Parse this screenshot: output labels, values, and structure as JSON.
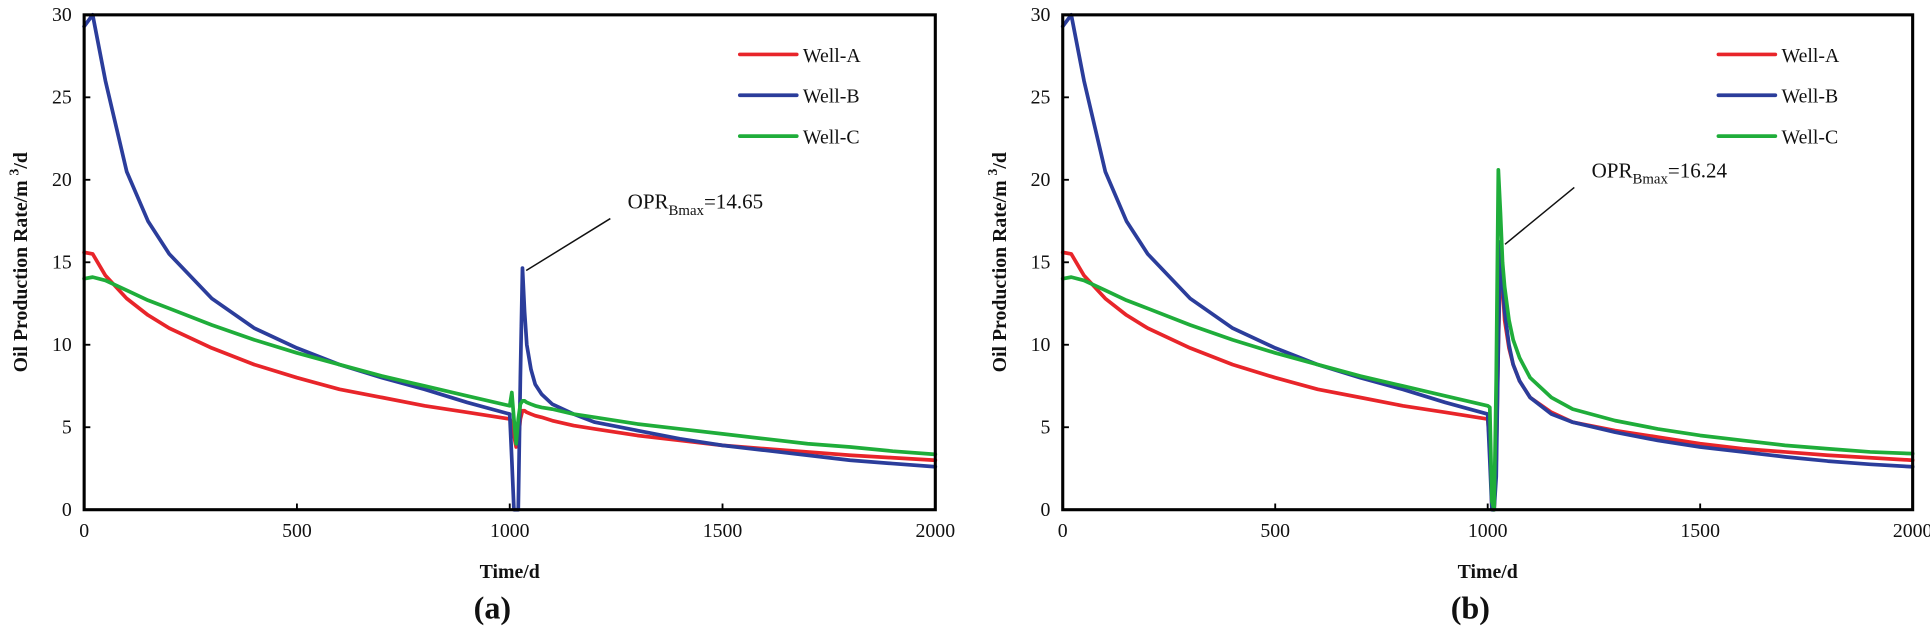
{
  "colors": {
    "Well-A": "#e8252a",
    "Well-B": "#2b3d9b",
    "Well-C": "#1fad3a"
  },
  "chart_data": [
    {
      "type": "line",
      "panel_label": "(a)",
      "xlabel": "Time/d",
      "ylabel": {
        "text": "Oil Production Rate/m ",
        "sup": "3",
        "tail": "/d"
      },
      "xlim": [
        0,
        2000
      ],
      "ylim": [
        0,
        30
      ],
      "xticks": [
        "0",
        "500",
        "1000",
        "1500",
        "2000"
      ],
      "yticks": [
        "0",
        "5",
        "10",
        "15",
        "20",
        "25",
        "30"
      ],
      "grid": false,
      "legend": "top-right",
      "annotation": {
        "prefix": "OPR",
        "sub": "Bmax",
        "suffix": "=14.65",
        "x": 1030,
        "y": 14.65
      },
      "x": [
        0,
        20,
        50,
        100,
        150,
        200,
        300,
        400,
        500,
        600,
        700,
        800,
        900,
        1000,
        1005,
        1010,
        1015,
        1020,
        1025,
        1030,
        1035,
        1040,
        1050,
        1060,
        1075,
        1100,
        1150,
        1200,
        1300,
        1400,
        1500,
        1600,
        1700,
        1800,
        1900,
        2000
      ],
      "series": [
        {
          "name": "Well-A",
          "values": [
            15.6,
            15.5,
            14.2,
            12.8,
            11.8,
            11,
            9.8,
            8.8,
            8,
            7.3,
            6.8,
            6.3,
            5.9,
            5.5,
            5.3,
            4.5,
            3.8,
            4.2,
            5.5,
            6.0,
            6.0,
            5.9,
            5.8,
            5.7,
            5.6,
            5.4,
            5.1,
            4.9,
            4.5,
            4.2,
            3.9,
            3.7,
            3.5,
            3.3,
            3.15,
            3.0
          ]
        },
        {
          "name": "Well-B",
          "values": [
            29.3,
            30,
            26,
            20.5,
            17.5,
            15.5,
            12.8,
            11,
            9.8,
            8.8,
            8,
            7.3,
            6.5,
            5.8,
            3,
            0,
            0,
            0,
            8,
            14.65,
            12,
            10,
            8.5,
            7.6,
            7,
            6.4,
            5.8,
            5.3,
            4.8,
            4.3,
            3.9,
            3.6,
            3.3,
            3.0,
            2.8,
            2.6
          ]
        },
        {
          "name": "Well-C",
          "values": [
            14,
            14.1,
            13.9,
            13.3,
            12.7,
            12.2,
            11.2,
            10.3,
            9.5,
            8.8,
            8.1,
            7.5,
            6.9,
            6.3,
            7.1,
            5.5,
            4,
            5.5,
            6.4,
            6.6,
            6.6,
            6.5,
            6.4,
            6.3,
            6.2,
            6.1,
            5.8,
            5.6,
            5.2,
            4.9,
            4.6,
            4.3,
            4.0,
            3.8,
            3.55,
            3.35
          ]
        }
      ]
    },
    {
      "type": "line",
      "panel_label": "(b)",
      "xlabel": "Time/d",
      "ylabel": {
        "text": "Oil Production Rate/m ",
        "sup": "3",
        "tail": "/d"
      },
      "xlim": [
        0,
        2000
      ],
      "ylim": [
        0,
        30
      ],
      "xticks": [
        "0",
        "500",
        "1000",
        "1500",
        "2000"
      ],
      "yticks": [
        "0",
        "5",
        "10",
        "15",
        "20",
        "25",
        "30"
      ],
      "grid": false,
      "legend": "top-right",
      "annotation": {
        "prefix": "OPR",
        "sub": "Bmax",
        "suffix": "=16.24",
        "x": 1032,
        "y": 16.24
      },
      "x": [
        0,
        20,
        50,
        100,
        150,
        200,
        300,
        400,
        500,
        600,
        700,
        800,
        900,
        1000,
        1005,
        1010,
        1015,
        1020,
        1025,
        1030,
        1035,
        1040,
        1050,
        1060,
        1075,
        1100,
        1150,
        1200,
        1300,
        1400,
        1500,
        1600,
        1700,
        1800,
        1900,
        2000
      ],
      "series": [
        {
          "name": "Well-A",
          "values": [
            15.6,
            15.5,
            14.2,
            12.8,
            11.8,
            11,
            9.8,
            8.8,
            8,
            7.3,
            6.8,
            6.3,
            5.9,
            5.5,
            4,
            0.2,
            0,
            3,
            10,
            15,
            13.5,
            11.5,
            9.8,
            8.8,
            7.8,
            6.8,
            5.9,
            5.3,
            4.8,
            4.4,
            4.0,
            3.7,
            3.5,
            3.3,
            3.15,
            3.0
          ]
        },
        {
          "name": "Well-B",
          "values": [
            29.3,
            30,
            26,
            20.5,
            17.5,
            15.5,
            12.8,
            11,
            9.8,
            8.8,
            8,
            7.3,
            6.5,
            5.8,
            3,
            0,
            0,
            2,
            10,
            16.24,
            14,
            12,
            10,
            8.8,
            7.8,
            6.8,
            5.8,
            5.3,
            4.7,
            4.2,
            3.8,
            3.5,
            3.2,
            2.95,
            2.75,
            2.6
          ]
        },
        {
          "name": "Well-C",
          "values": [
            14,
            14.1,
            13.9,
            13.3,
            12.7,
            12.2,
            11.2,
            10.3,
            9.5,
            8.8,
            8.1,
            7.5,
            6.9,
            6.3,
            6.2,
            0.5,
            0,
            8,
            20.6,
            18,
            15,
            13.5,
            11.5,
            10.3,
            9.2,
            8,
            6.8,
            6.1,
            5.4,
            4.9,
            4.5,
            4.2,
            3.9,
            3.7,
            3.5,
            3.4
          ]
        }
      ]
    }
  ]
}
